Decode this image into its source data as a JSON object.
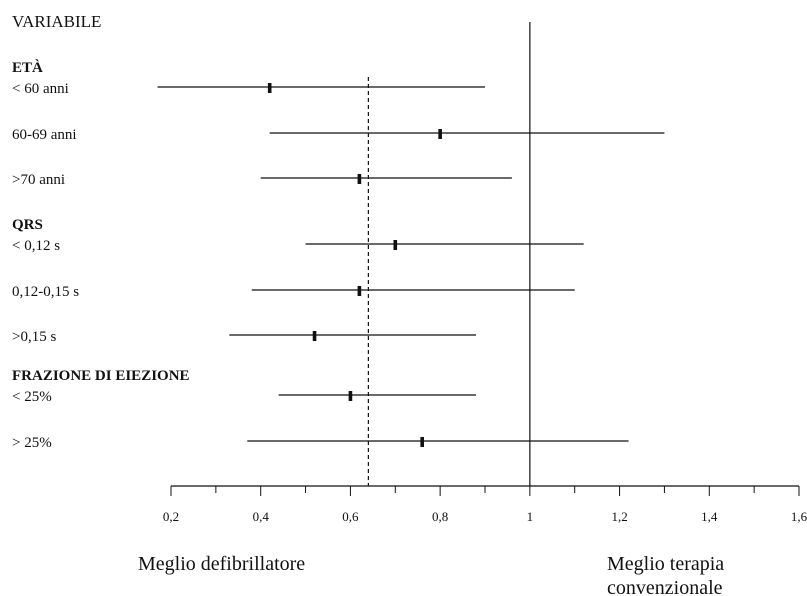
{
  "chart_data": {
    "type": "forest",
    "header": "VARIABILE",
    "x_ticks": [
      "0,2",
      "0,4",
      "0,6",
      "0,8",
      "1",
      "1,2",
      "1,4",
      "1,6"
    ],
    "xlim": [
      0.2,
      1.6
    ],
    "reference_line": 1,
    "overall_line": 0.64,
    "left_note": "Meglio defibrillatore",
    "right_note": [
      "Meglio terapia",
      "convenzionale"
    ],
    "groups": [
      {
        "title": "ETÀ",
        "rows": [
          {
            "label": "< 60 anni",
            "estimate": 0.42,
            "lower": 0.17,
            "upper": 0.9
          },
          {
            "label": "60-69 anni",
            "estimate": 0.8,
            "lower": 0.42,
            "upper": 1.3
          },
          {
            "label": ">70 anni",
            "estimate": 0.62,
            "lower": 0.4,
            "upper": 0.96
          }
        ]
      },
      {
        "title": "QRS",
        "rows": [
          {
            "label": "< 0,12 s",
            "estimate": 0.7,
            "lower": 0.5,
            "upper": 1.12
          },
          {
            "label": "0,12-0,15 s",
            "estimate": 0.62,
            "lower": 0.38,
            "upper": 1.1
          },
          {
            "label": ">0,15 s",
            "estimate": 0.52,
            "lower": 0.33,
            "upper": 0.88
          }
        ]
      },
      {
        "title": "FRAZIONE DI EIEZIONE",
        "rows": [
          {
            "label": "< 25%",
            "estimate": 0.6,
            "lower": 0.44,
            "upper": 0.88
          },
          {
            "label": "> 25%",
            "estimate": 0.76,
            "lower": 0.37,
            "upper": 1.22
          }
        ]
      }
    ]
  }
}
